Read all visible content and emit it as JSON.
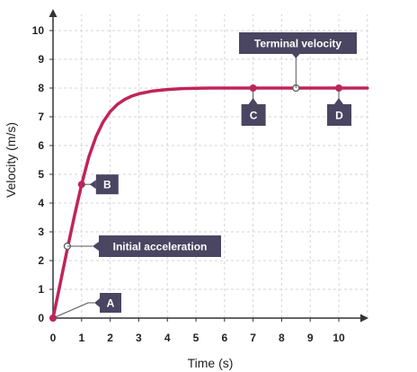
{
  "chart_data": {
    "type": "line",
    "xlabel": "Time (s)",
    "ylabel": "Velocity (m/s)",
    "xlim": [
      0,
      11
    ],
    "ylim": [
      0,
      10
    ],
    "x_ticks": [
      0,
      1,
      2,
      3,
      4,
      5,
      6,
      7,
      8,
      9,
      10
    ],
    "y_ticks": [
      0,
      1,
      2,
      3,
      4,
      5,
      6,
      7,
      8,
      9,
      10
    ],
    "grid": true,
    "line_color": "#c0245a",
    "terminal_velocity": 8,
    "series": [
      {
        "x": [
          0,
          0.25,
          0.5,
          0.75,
          1,
          1.25,
          1.5,
          1.75,
          2,
          2.25,
          2.5,
          2.75,
          3,
          3.5,
          4,
          4.5,
          5,
          5.5,
          6,
          7,
          8,
          9,
          10,
          11
        ],
        "y": [
          0,
          1.2,
          2.4,
          3.55,
          4.65,
          5.6,
          6.3,
          6.82,
          7.18,
          7.43,
          7.6,
          7.72,
          7.8,
          7.9,
          7.95,
          7.98,
          7.99,
          8.0,
          8.0,
          8.0,
          8.0,
          8.0,
          8.0,
          8.0
        ]
      }
    ],
    "points": [
      {
        "label": "A",
        "x": 0,
        "y": 0
      },
      {
        "label": "B",
        "x": 1,
        "y": 4.65
      },
      {
        "label": "C",
        "x": 7,
        "y": 8
      },
      {
        "label": "D",
        "x": 10,
        "y": 8
      }
    ],
    "annotations": [
      {
        "text": "Initial acceleration",
        "x": 0.5,
        "y": 2.5
      },
      {
        "text": "Terminal velocity",
        "x": 8.5,
        "y": 8
      }
    ]
  }
}
